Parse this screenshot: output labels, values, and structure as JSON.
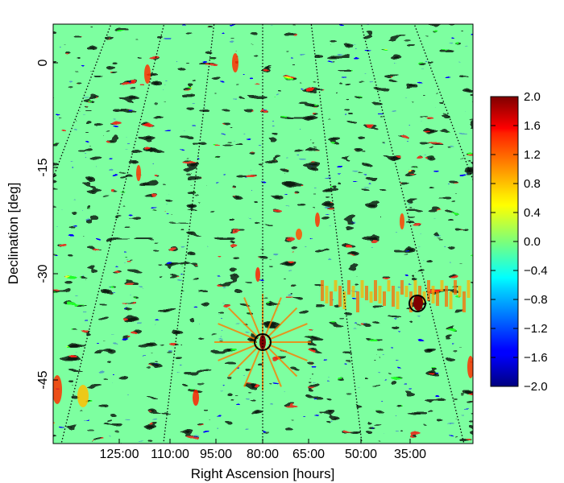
{
  "chart_data": {
    "type": "heatmap",
    "title": "",
    "xlabel": "Right Ascension [hours]",
    "ylabel": "Declination [deg]",
    "x_ticks": [
      "125:00",
      "110:00",
      "95:00",
      "80:00",
      "65:00",
      "50:00",
      "35:00"
    ],
    "y_ticks": [
      "0",
      "-15",
      "-30",
      "-45"
    ],
    "colorbar": {
      "colormap": "jet",
      "range": [
        -2.0,
        2.0
      ],
      "ticks": [
        "2.0",
        "1.6",
        "1.2",
        "0.8",
        "0.4",
        "0.0",
        "−0.4",
        "−0.8",
        "−1.2",
        "−1.6",
        "−2.0"
      ]
    },
    "grid": "dotted curved RA/Dec graticule",
    "markers": [
      {
        "shape": "circle",
        "ra": "80:00",
        "dec": -40
      },
      {
        "shape": "circle",
        "ra": "35:00",
        "dec": -34
      }
    ],
    "colors": {
      "dark_blue": "#00007f",
      "blue": "#0000ff",
      "cyan": "#00ffff",
      "green_cyan": "#80ff80",
      "yellow": "#ffff00",
      "red": "#ff0000",
      "dark_red": "#7f0000"
    }
  }
}
